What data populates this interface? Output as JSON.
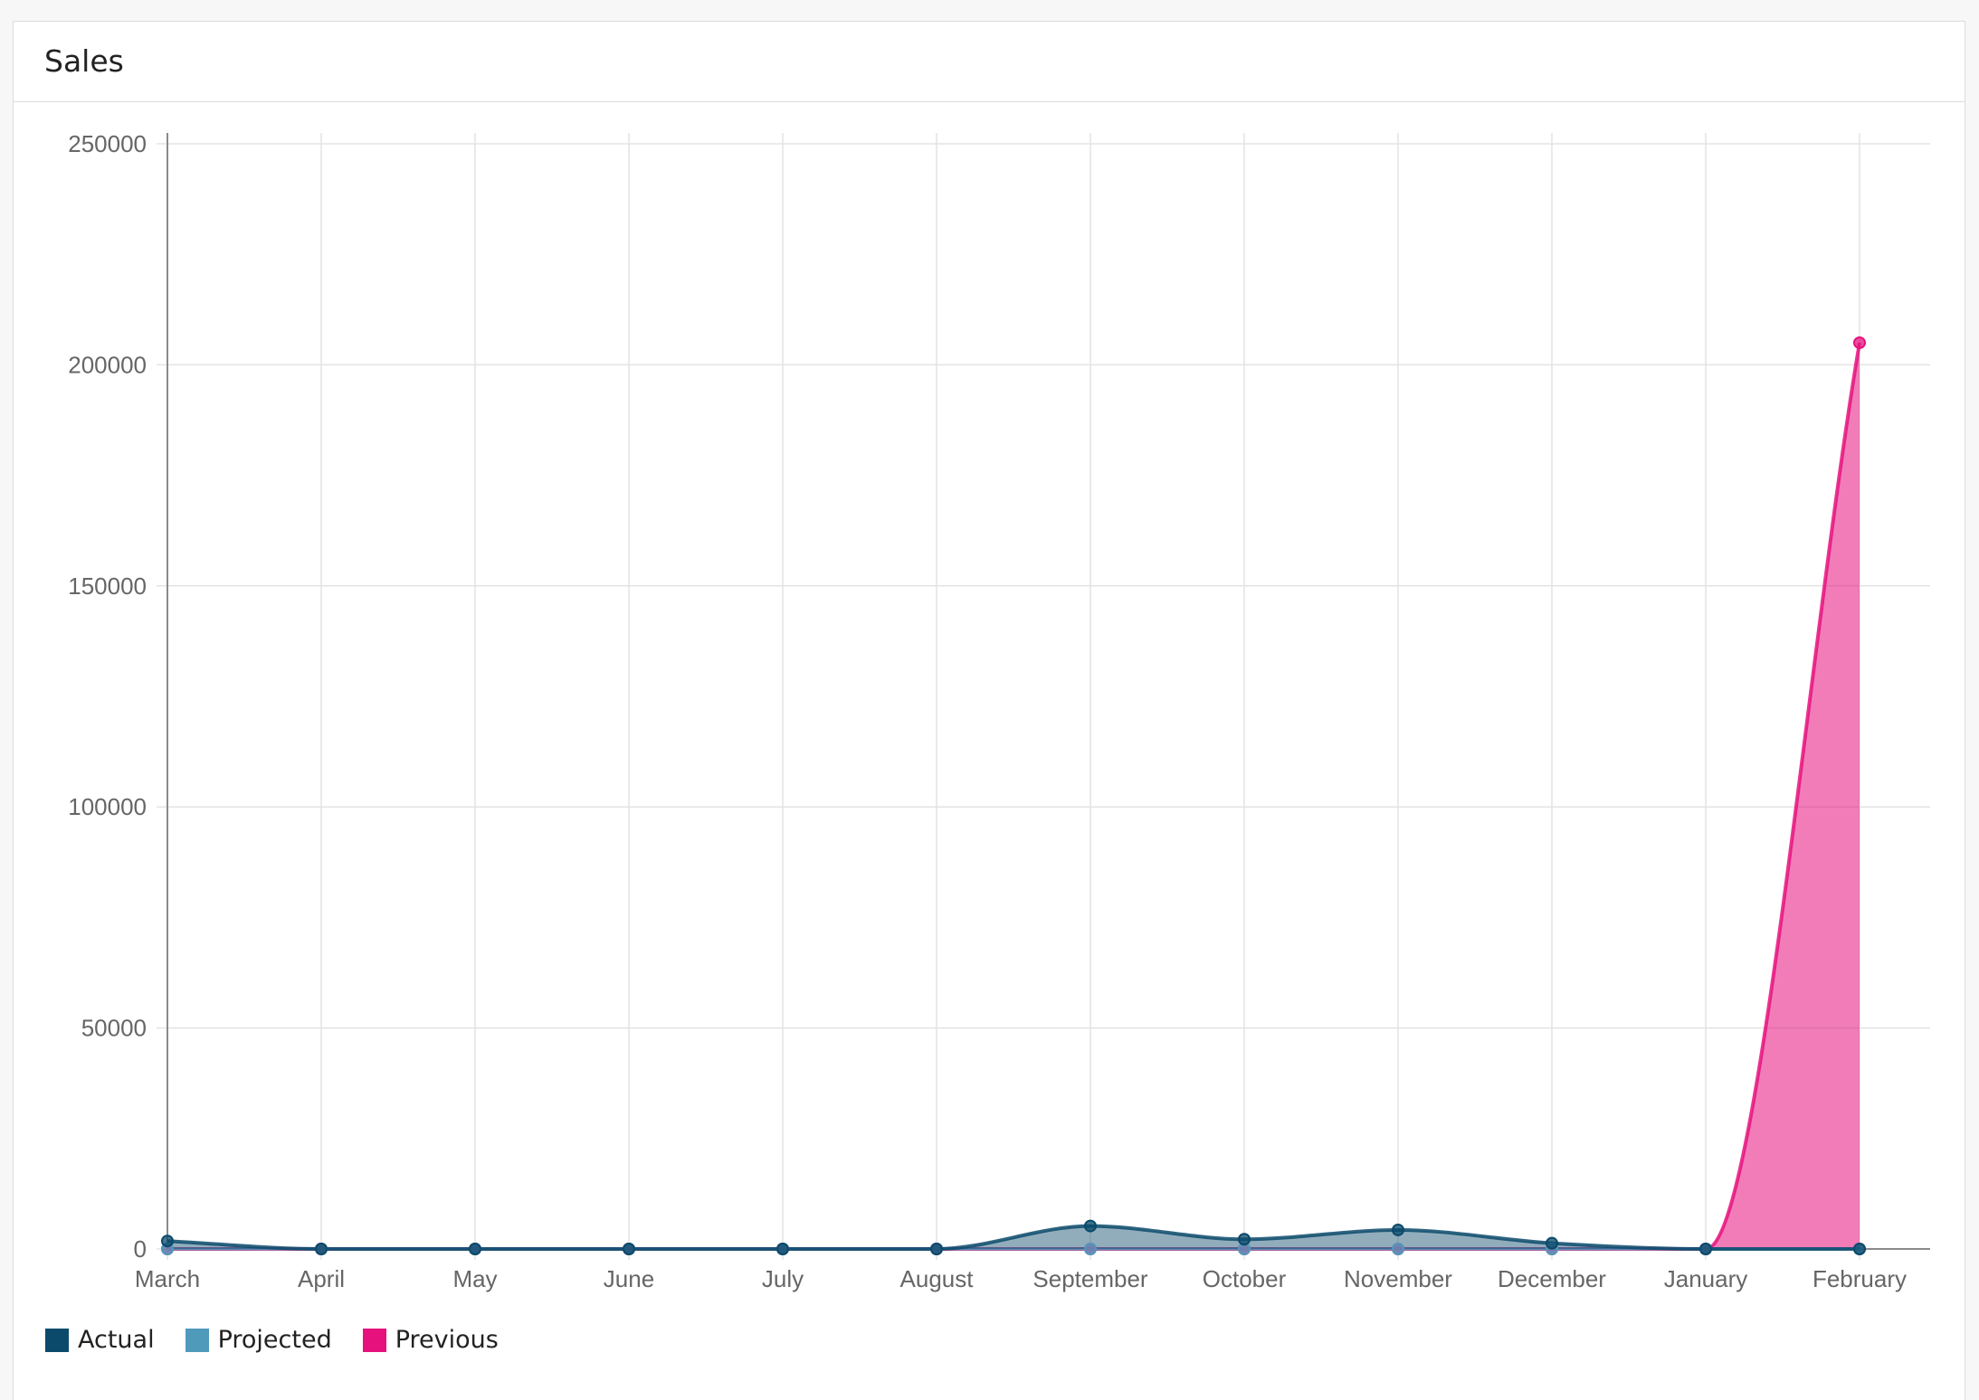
{
  "card": {
    "title": "Sales"
  },
  "chart_data": {
    "type": "area",
    "title": "Sales",
    "categories": [
      "March",
      "April",
      "May",
      "June",
      "July",
      "August",
      "September",
      "October",
      "November",
      "December",
      "January",
      "February"
    ],
    "ylim": [
      0,
      250000
    ],
    "yticks": [
      0,
      50000,
      100000,
      150000,
      200000,
      250000
    ],
    "grid": true,
    "legend_position": "bottom-left",
    "series": [
      {
        "name": "Actual",
        "color": "#0b4a6b",
        "values": [
          1800,
          0,
          0,
          0,
          0,
          0,
          5200,
          2200,
          4300,
          1300,
          0,
          0
        ]
      },
      {
        "name": "Projected",
        "color": "#4f9abb",
        "values": [
          0,
          0,
          0,
          0,
          0,
          0,
          0,
          0,
          0,
          0,
          0,
          0
        ]
      },
      {
        "name": "Previous",
        "color": "#e6117d",
        "values": [
          0,
          0,
          0,
          0,
          0,
          0,
          0,
          0,
          0,
          0,
          0,
          205000
        ]
      }
    ]
  }
}
